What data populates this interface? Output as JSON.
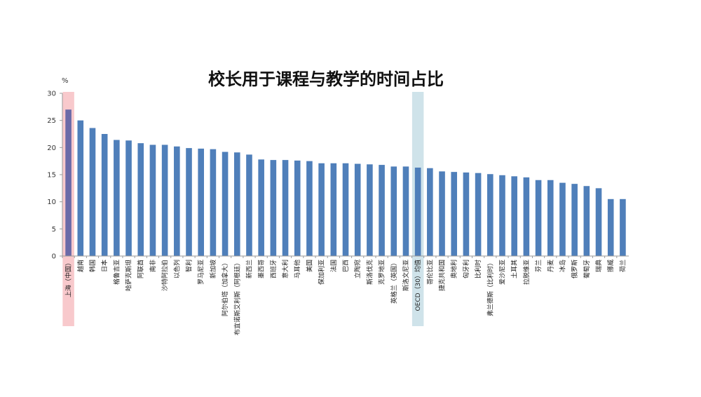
{
  "chart_data": {
    "type": "bar",
    "title": "校长用于课程与教学的时间占比",
    "ylabel": "%",
    "xlabel": "",
    "ylim": [
      0,
      30
    ],
    "yticks": [
      0,
      5,
      10,
      15,
      20,
      25,
      30
    ],
    "grid": false,
    "legend": "none",
    "categories": [
      "上海（中国）",
      "越南",
      "韩国",
      "日本",
      "格鲁吉亚",
      "哈萨克斯坦",
      "阿联酋",
      "南非",
      "沙特阿拉伯",
      "以色列",
      "智利",
      "罗马尼亚",
      "新加坡",
      "阿尔伯塔（加拿大）",
      "布宜诺斯艾利斯（阿根廷）",
      "新西兰",
      "墨西哥",
      "西班牙",
      "意大利",
      "马耳他",
      "美国",
      "保加利亚",
      "法国",
      "巴西",
      "立陶宛",
      "斯洛伐克",
      "克罗地亚",
      "英格兰（英国）",
      "斯洛文尼亚",
      "OECD（30）均值",
      "哥伦比亚",
      "捷克共和国",
      "奥地利",
      "匈牙利",
      "比利时",
      "弗兰德斯（比利时）",
      "爱沙尼亚",
      "土耳其",
      "拉脱维亚",
      "芬兰",
      "丹麦",
      "冰岛",
      "俄罗斯",
      "葡萄牙",
      "瑞典",
      "挪威",
      "荷兰"
    ],
    "values": [
      27.0,
      25.0,
      23.6,
      22.5,
      21.4,
      21.3,
      20.8,
      20.5,
      20.5,
      20.2,
      19.9,
      19.8,
      19.7,
      19.2,
      19.1,
      18.7,
      17.8,
      17.7,
      17.7,
      17.6,
      17.5,
      17.1,
      17.1,
      17.1,
      17.0,
      16.9,
      16.8,
      16.5,
      16.5,
      16.3,
      16.2,
      15.6,
      15.5,
      15.4,
      15.3,
      15.1,
      14.9,
      14.7,
      14.5,
      14.0,
      14.0,
      13.5,
      13.3,
      12.9,
      12.5,
      10.5,
      10.5
    ],
    "highlights": [
      {
        "index": 0,
        "color": "#f8c9cc"
      },
      {
        "index": 29,
        "color": "#cfe3ea"
      }
    ],
    "bar_color": "#4f7fba",
    "highlighted_bar_color": "#6a6aa8"
  }
}
